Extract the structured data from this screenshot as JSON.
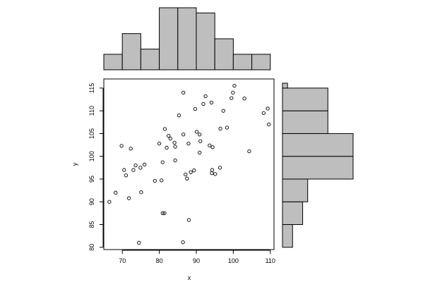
{
  "chart_data": [
    {
      "type": "scatter",
      "xlabel": "x",
      "ylabel": "y",
      "xlim": [
        65,
        111
      ],
      "ylim": [
        79.5,
        117
      ],
      "xticks": [
        70,
        80,
        90,
        100,
        110
      ],
      "yticks": [
        80,
        85,
        90,
        95,
        100,
        105,
        110,
        115
      ],
      "points": [
        [
          66.5,
          90.0
        ],
        [
          68.2,
          92.0
        ],
        [
          69.8,
          102.3
        ],
        [
          70.5,
          97.0
        ],
        [
          71.0,
          95.8
        ],
        [
          71.8,
          90.8
        ],
        [
          72.3,
          101.7
        ],
        [
          73.0,
          97.0
        ],
        [
          73.6,
          98.0
        ],
        [
          74.5,
          81.0
        ],
        [
          74.9,
          97.5
        ],
        [
          75.1,
          92.1
        ],
        [
          76.0,
          98.2
        ],
        [
          78.8,
          94.6
        ],
        [
          80.0,
          102.8
        ],
        [
          80.6,
          94.7
        ],
        [
          80.9,
          87.5
        ],
        [
          80.9,
          98.7
        ],
        [
          81.4,
          87.5
        ],
        [
          81.5,
          106.0
        ],
        [
          82.0,
          101.9
        ],
        [
          82.5,
          104.5
        ],
        [
          83.0,
          103.9
        ],
        [
          84.1,
          103.0
        ],
        [
          84.3,
          102.1
        ],
        [
          84.3,
          99.1
        ],
        [
          85.3,
          109.0
        ],
        [
          86.4,
          81.1
        ],
        [
          86.5,
          104.8
        ],
        [
          86.5,
          114.0
        ],
        [
          87.1,
          96.0
        ],
        [
          87.5,
          95.1
        ],
        [
          87.9,
          102.8
        ],
        [
          88.0,
          86.0
        ],
        [
          88.5,
          96.5
        ],
        [
          89.4,
          96.9
        ],
        [
          89.7,
          110.4
        ],
        [
          90.1,
          105.4
        ],
        [
          90.9,
          100.8
        ],
        [
          90.9,
          104.8
        ],
        [
          91.1,
          103.3
        ],
        [
          91.9,
          111.5
        ],
        [
          92.5,
          113.2
        ],
        [
          93.6,
          102.4
        ],
        [
          94.1,
          111.8
        ],
        [
          94.2,
          96.3
        ],
        [
          94.3,
          97.0
        ],
        [
          94.4,
          102.0
        ],
        [
          95.1,
          96.1
        ],
        [
          96.4,
          97.5
        ],
        [
          96.5,
          106.1
        ],
        [
          97.3,
          110.0
        ],
        [
          98.3,
          106.3
        ],
        [
          99.5,
          112.8
        ],
        [
          99.9,
          114.0
        ],
        [
          100.3,
          115.5
        ],
        [
          103.0,
          112.7
        ],
        [
          104.3,
          101.1
        ],
        [
          108.2,
          109.5
        ],
        [
          109.3,
          110.5
        ],
        [
          109.6,
          107.0
        ]
      ]
    },
    {
      "type": "bar",
      "orientation": "vertical",
      "axis": "x-histogram",
      "bin_edges": [
        65,
        70,
        75,
        80,
        85,
        90,
        95,
        100,
        105,
        110
      ],
      "values": [
        3,
        7,
        4,
        12,
        12,
        11,
        6,
        3,
        3
      ]
    },
    {
      "type": "bar",
      "orientation": "horizontal",
      "axis": "y-histogram",
      "bin_edges": [
        80,
        85,
        90,
        95,
        100,
        105,
        110,
        115,
        120
      ],
      "values": [
        2,
        4,
        5,
        14,
        14,
        9,
        9,
        1
      ]
    }
  ]
}
